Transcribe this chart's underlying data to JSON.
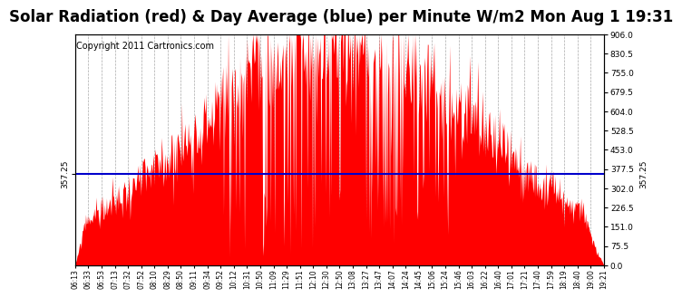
{
  "title": "Solar Radiation (red) & Day Average (blue) per Minute W/m2 Mon Aug 1 19:31",
  "copyright_text": "Copyright 2011 Cartronics.com",
  "y_right_ticks": [
    0.0,
    75.5,
    151.0,
    226.5,
    302.0,
    377.5,
    453.0,
    528.5,
    604.0,
    679.5,
    755.0,
    830.5,
    906.0
  ],
  "avg_line_value": 357.25,
  "y_max": 906.0,
  "y_min": 0.0,
  "bar_color": "#FF0000",
  "avg_line_color": "#0000CC",
  "background_color": "#FFFFFF",
  "plot_bg_color": "#FFFFFF",
  "grid_color": "#AAAAAA",
  "title_fontsize": 12,
  "copyright_fontsize": 7,
  "x_tick_labels": [
    "06:13",
    "06:33",
    "06:53",
    "07:13",
    "07:32",
    "07:52",
    "08:10",
    "08:29",
    "08:50",
    "09:11",
    "09:34",
    "09:52",
    "10:12",
    "10:31",
    "10:50",
    "11:09",
    "11:29",
    "11:51",
    "12:10",
    "12:30",
    "12:50",
    "13:08",
    "13:27",
    "13:47",
    "14:07",
    "14:24",
    "14:45",
    "15:06",
    "15:24",
    "15:46",
    "16:03",
    "16:22",
    "16:40",
    "17:01",
    "17:21",
    "17:40",
    "17:59",
    "18:19",
    "18:40",
    "19:00",
    "19:21"
  ],
  "num_points": 810,
  "seed": 99
}
